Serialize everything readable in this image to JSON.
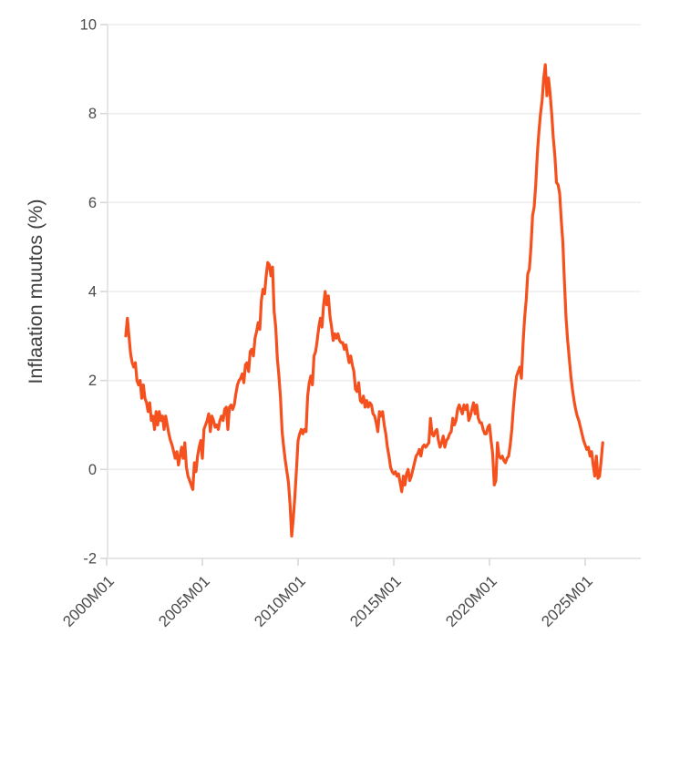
{
  "page": {
    "background": "#ffffff"
  },
  "chart_data": {
    "type": "line",
    "title": "",
    "xlabel": "",
    "ylabel": "Inflaation muutos (%)",
    "series_name": "Inflaation muutos (%)",
    "frequency": "monthly",
    "x_start": "2001M01",
    "x_end": "2025M12",
    "x_tick_labels": [
      "2000M01",
      "2005M01",
      "2010M01",
      "2015M01",
      "2020M01",
      "2025M01"
    ],
    "x_tick_interval_months": 60,
    "y_ticks": [
      -2,
      0,
      2,
      4,
      6,
      8,
      10
    ],
    "y_tick_labels": [
      "-2",
      "0",
      "2",
      "4",
      "6",
      "8",
      "10"
    ],
    "ylim": [
      -2,
      10
    ],
    "grid": "horizontal-only",
    "legend": "none",
    "colors": {
      "line": "#f4511e",
      "grid": "#ededed",
      "axis": "#e0e0e0",
      "tick": "#d8d8d8",
      "tick_label": "#4a4a4a",
      "axis_title": "#404040",
      "background": "#ffffff"
    },
    "values": [
      3.0,
      3.4,
      3.0,
      2.6,
      2.4,
      2.3,
      2.4,
      2.0,
      1.9,
      2.0,
      1.6,
      1.9,
      1.6,
      1.5,
      1.3,
      1.5,
      1.1,
      1.2,
      0.9,
      1.3,
      1.0,
      1.3,
      1.1,
      1.2,
      0.9,
      1.2,
      1.0,
      0.8,
      0.65,
      0.55,
      0.4,
      0.25,
      0.4,
      0.1,
      0.3,
      0.5,
      0.25,
      0.6,
      0.05,
      -0.15,
      -0.25,
      -0.35,
      -0.45,
      0.15,
      -0.05,
      0.3,
      0.5,
      0.65,
      0.25,
      0.9,
      1.0,
      1.1,
      1.25,
      0.85,
      1.2,
      1.1,
      0.95,
      1.0,
      0.9,
      1.1,
      1.2,
      1.1,
      1.35,
      1.4,
      0.9,
      1.4,
      1.45,
      1.35,
      1.45,
      1.7,
      1.9,
      2.0,
      2.05,
      2.15,
      1.95,
      2.35,
      2.4,
      2.2,
      2.65,
      2.7,
      2.55,
      2.95,
      3.1,
      3.3,
      3.15,
      3.8,
      4.05,
      3.95,
      4.35,
      4.65,
      4.6,
      4.35,
      4.55,
      3.55,
      3.2,
      2.5,
      2.1,
      1.6,
      0.85,
      0.5,
      0.2,
      -0.05,
      -0.3,
      -0.8,
      -1.5,
      -1.1,
      -0.6,
      0.0,
      0.65,
      0.8,
      0.9,
      0.8,
      0.9,
      0.85,
      1.65,
      1.95,
      2.1,
      1.9,
      2.55,
      2.65,
      2.9,
      3.2,
      3.4,
      3.2,
      3.7,
      4.0,
      3.7,
      3.9,
      3.45,
      3.2,
      2.9,
      3.05,
      2.95,
      3.05,
      2.9,
      2.85,
      2.85,
      2.7,
      2.8,
      2.6,
      2.4,
      2.55,
      2.35,
      2.2,
      1.8,
      1.75,
      1.95,
      1.55,
      1.5,
      1.65,
      1.4,
      1.55,
      1.4,
      1.5,
      1.45,
      1.25,
      1.2,
      1.05,
      0.85,
      1.3,
      1.2,
      1.3,
      1.0,
      0.8,
      0.5,
      0.3,
      0.05,
      -0.05,
      -0.1,
      -0.05,
      -0.15,
      -0.1,
      -0.3,
      -0.5,
      -0.15,
      -0.35,
      -0.1,
      0.0,
      -0.25,
      -0.15,
      0.0,
      0.15,
      0.3,
      0.35,
      0.45,
      0.3,
      0.5,
      0.55,
      0.5,
      0.55,
      0.6,
      1.15,
      0.8,
      0.75,
      0.85,
      0.9,
      0.65,
      0.5,
      0.6,
      0.75,
      0.5,
      0.65,
      0.7,
      0.8,
      0.85,
      1.15,
      1.0,
      1.1,
      1.35,
      1.45,
      1.35,
      1.25,
      1.45,
      1.35,
      1.45,
      1.1,
      1.2,
      1.35,
      1.5,
      1.25,
      1.45,
      1.15,
      1.05,
      1.05,
      0.9,
      0.8,
      0.8,
      0.95,
      1.0,
      0.65,
      0.35,
      -0.35,
      -0.25,
      0.6,
      0.3,
      0.25,
      0.3,
      0.2,
      0.15,
      0.25,
      0.3,
      0.55,
      0.9,
      1.4,
      1.8,
      2.1,
      2.2,
      2.3,
      2.05,
      2.8,
      3.4,
      3.8,
      4.4,
      4.5,
      5.0,
      5.7,
      5.9,
      6.4,
      7.1,
      7.6,
      8.0,
      8.3,
      8.8,
      9.1,
      8.4,
      8.8,
      8.45,
      8.0,
      7.45,
      7.05,
      6.45,
      6.4,
      6.2,
      5.6,
      5.1,
      4.2,
      3.4,
      2.9,
      2.5,
      2.1,
      1.8,
      1.55,
      1.35,
      1.2,
      1.1,
      0.95,
      0.8,
      0.65,
      0.55,
      0.45,
      0.5,
      0.3,
      0.4,
      0.1,
      -0.15,
      0.3,
      -0.2,
      -0.15,
      0.2,
      0.6
    ]
  }
}
